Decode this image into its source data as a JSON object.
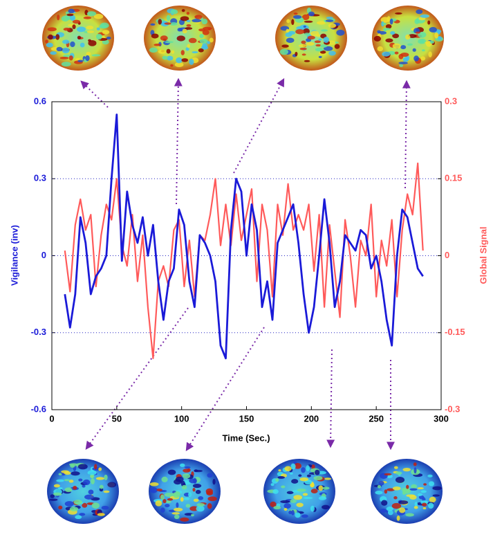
{
  "chart_data": {
    "type": "line",
    "x_label": "Time (Sec.)",
    "y_label": "Vigilance (inv)",
    "y2_label": "Global Signal",
    "x": [
      10,
      14,
      18,
      22,
      26,
      30,
      34,
      38,
      42,
      46,
      50,
      54,
      58,
      62,
      66,
      70,
      74,
      78,
      82,
      86,
      90,
      94,
      98,
      102,
      106,
      110,
      114,
      118,
      122,
      126,
      130,
      134,
      138,
      142,
      146,
      150,
      154,
      158,
      162,
      166,
      170,
      174,
      178,
      182,
      186,
      190,
      194,
      198,
      202,
      206,
      210,
      214,
      218,
      222,
      226,
      230,
      234,
      238,
      242,
      246,
      250,
      254,
      258,
      262,
      266,
      270,
      274,
      278,
      282,
      286
    ],
    "series": [
      {
        "name": "Vigilance (inv)",
        "color": "#1a1ad8",
        "axis": "y",
        "values": [
          -0.15,
          -0.28,
          -0.15,
          0.15,
          0.05,
          -0.15,
          -0.08,
          -0.05,
          0.0,
          0.3,
          0.55,
          -0.02,
          0.25,
          0.12,
          0.05,
          0.15,
          0.0,
          0.12,
          -0.1,
          -0.25,
          -0.1,
          -0.05,
          0.18,
          0.12,
          -0.1,
          -0.2,
          0.08,
          0.05,
          0.0,
          -0.1,
          -0.35,
          -0.4,
          0.1,
          0.3,
          0.25,
          0.0,
          0.2,
          0.1,
          -0.2,
          -0.1,
          -0.25,
          0.05,
          0.1,
          0.15,
          0.2,
          0.05,
          -0.15,
          -0.3,
          -0.2,
          0.0,
          0.22,
          0.05,
          -0.2,
          -0.1,
          0.08,
          0.05,
          0.02,
          0.1,
          0.08,
          -0.05,
          0.0,
          -0.1,
          -0.25,
          -0.35,
          0.0,
          0.18,
          0.15,
          0.05,
          -0.05,
          -0.08
        ]
      },
      {
        "name": "Global Signal",
        "color": "#ff5a5a",
        "axis": "y2",
        "values": [
          0.01,
          -0.07,
          0.06,
          0.11,
          0.05,
          0.08,
          -0.06,
          0.04,
          0.1,
          0.07,
          0.15,
          0.02,
          -0.02,
          0.08,
          -0.05,
          0.04,
          -0.1,
          -0.2,
          -0.05,
          -0.02,
          -0.06,
          0.05,
          0.07,
          -0.06,
          0.03,
          -0.08,
          0.04,
          0.03,
          0.08,
          0.15,
          0.02,
          0.1,
          0.02,
          0.12,
          0.03,
          0.08,
          0.13,
          -0.05,
          0.1,
          0.05,
          -0.08,
          0.1,
          0.04,
          0.14,
          0.05,
          0.08,
          0.05,
          0.1,
          -0.03,
          0.08,
          -0.1,
          0.06,
          -0.03,
          -0.12,
          0.07,
          0.0,
          -0.1,
          0.03,
          0.0,
          0.1,
          -0.08,
          0.03,
          -0.02,
          0.07,
          -0.08,
          0.05,
          0.12,
          0.08,
          0.18,
          0.01
        ]
      }
    ],
    "xlim": [
      0,
      300
    ],
    "xticks": [
      0,
      50,
      100,
      150,
      200,
      250,
      300
    ],
    "ylim": [
      -0.6,
      0.6
    ],
    "yticks": [
      -0.6,
      -0.3,
      0,
      0.3,
      0.6
    ],
    "y2lim": [
      -0.3,
      0.3
    ],
    "y2ticks": [
      -0.3,
      -0.15,
      0,
      0.15,
      0.3
    ],
    "grid": true
  }
}
